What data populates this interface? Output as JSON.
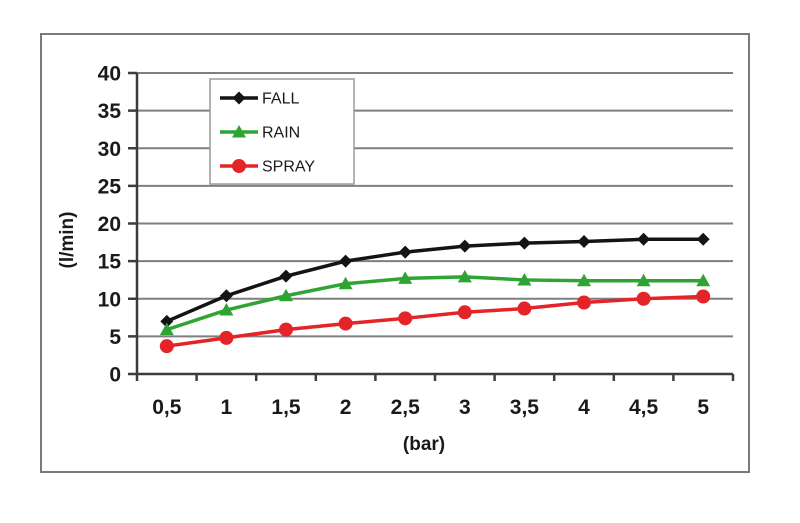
{
  "chart_data": {
    "type": "line",
    "title": "",
    "xlabel": "(bar)",
    "ylabel": "(l/min)",
    "x": [
      0.5,
      1,
      1.5,
      2,
      2.5,
      3,
      3.5,
      4,
      4.5,
      5
    ],
    "x_tick_labels": [
      "0,5",
      "1",
      "1,5",
      "2",
      "2,5",
      "3",
      "3,5",
      "4",
      "4,5",
      "5"
    ],
    "ylim": [
      0,
      40
    ],
    "ytick_step": 5,
    "y_tick_labels": [
      "0",
      "5",
      "10",
      "15",
      "20",
      "25",
      "30",
      "35",
      "40"
    ],
    "grid": true,
    "legend_position": "top-center-inside",
    "series": [
      {
        "name": "FALL",
        "color": "#141414",
        "marker": "diamond",
        "values": [
          7.0,
          10.4,
          13.0,
          15.0,
          16.2,
          17.0,
          17.4,
          17.6,
          17.9,
          17.9
        ]
      },
      {
        "name": "RAIN",
        "color": "#2fa432",
        "marker": "triangle",
        "values": [
          5.9,
          8.5,
          10.4,
          12.0,
          12.7,
          12.9,
          12.5,
          12.4,
          12.4,
          12.4
        ]
      },
      {
        "name": "SPRAY",
        "color": "#e42428",
        "marker": "circle",
        "values": [
          3.7,
          4.8,
          5.9,
          6.7,
          7.4,
          8.2,
          8.7,
          9.5,
          10.0,
          10.3
        ]
      }
    ],
    "colors": {
      "gridline": "#7f7f7f",
      "axis": "#3c3c3c",
      "frame_border": "#7a7a7a",
      "legend_border": "#9a9a9a",
      "text": "#1a1a1a",
      "background": "#ffffff"
    }
  }
}
